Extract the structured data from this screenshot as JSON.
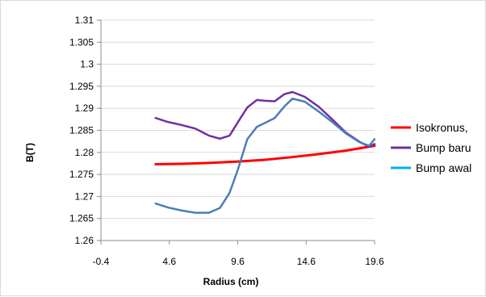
{
  "chart_data": {
    "type": "line",
    "title": "",
    "xlabel": "Radius (cm)",
    "ylabel": "B(T)",
    "xlim": [
      -0.4,
      19.6
    ],
    "ylim": [
      1.26,
      1.31
    ],
    "x_ticks": [
      {
        "value": -0.4,
        "label": "-0.4"
      },
      {
        "value": 4.6,
        "label": "4.6"
      },
      {
        "value": 9.6,
        "label": "9.6"
      },
      {
        "value": 14.6,
        "label": "14.6"
      },
      {
        "value": 19.6,
        "label": "19.6"
      }
    ],
    "y_ticks": [
      {
        "value": 1.26,
        "label": "1.26"
      },
      {
        "value": 1.265,
        "label": "1.265"
      },
      {
        "value": 1.27,
        "label": "1.27"
      },
      {
        "value": 1.275,
        "label": "1.275"
      },
      {
        "value": 1.28,
        "label": "1.28"
      },
      {
        "value": 1.285,
        "label": "1.285"
      },
      {
        "value": 1.29,
        "label": "1.29"
      },
      {
        "value": 1.295,
        "label": "1.295"
      },
      {
        "value": 1.3,
        "label": "1.3"
      },
      {
        "value": 1.305,
        "label": "1.305"
      },
      {
        "value": 1.31,
        "label": "1.31"
      }
    ],
    "grid": "horizontal",
    "legend": {
      "position": "right"
    },
    "series": [
      {
        "name": "Isokronus,",
        "color": "#ff0000",
        "x": [
          3.6,
          5.5,
          7.5,
          9.5,
          11.5,
          13.5,
          15.5,
          17.5,
          19.6
        ],
        "y": [
          1.2773,
          1.2774,
          1.2776,
          1.2779,
          1.2783,
          1.2789,
          1.2796,
          1.2804,
          1.2815
        ]
      },
      {
        "name": "Bump baru",
        "color": "#7030a0",
        "x": [
          3.6,
          4.5,
          5.5,
          6.5,
          7.5,
          8.3,
          9.0,
          9.6,
          10.3,
          11.0,
          11.6,
          12.3,
          13.0,
          13.6,
          14.5,
          15.5,
          16.5,
          17.5,
          18.5,
          19.2,
          19.6
        ],
        "y": [
          1.2878,
          1.2869,
          1.2862,
          1.2854,
          1.2838,
          1.2831,
          1.2838,
          1.2868,
          1.2902,
          1.2919,
          1.2917,
          1.2916,
          1.2932,
          1.2937,
          1.2926,
          1.2904,
          1.2875,
          1.2845,
          1.2824,
          1.2813,
          1.2819
        ]
      },
      {
        "name": "Bump awal",
        "color": "#00b0f0",
        "x": [
          3.6,
          4.5,
          5.5,
          6.5,
          7.5,
          8.3,
          9.0,
          9.6,
          10.3,
          11.0,
          11.6,
          12.3,
          13.0,
          13.6,
          14.5,
          15.5,
          16.5,
          17.5,
          18.5,
          19.2,
          19.6
        ],
        "y": [
          1.2684,
          1.2675,
          1.2668,
          1.2663,
          1.2663,
          1.2674,
          1.2708,
          1.276,
          1.283,
          1.2858,
          1.2867,
          1.2878,
          1.2904,
          1.2922,
          1.2915,
          1.2893,
          1.2869,
          1.2843,
          1.2823,
          1.2815,
          1.283
        ]
      }
    ]
  }
}
